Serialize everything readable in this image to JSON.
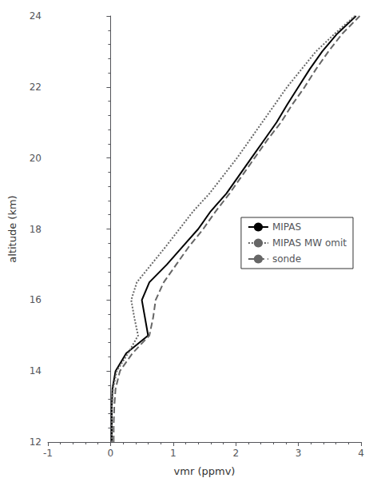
{
  "chart_data": {
    "type": "line",
    "xlabel": "vmr (ppmv)",
    "ylabel": "altitude (km)",
    "xlim": [
      -1,
      4
    ],
    "ylim": [
      12,
      24
    ],
    "xticks": [
      -1,
      0,
      1,
      2,
      3,
      4
    ],
    "yticks": [
      12,
      14,
      16,
      18,
      20,
      22,
      24
    ],
    "grid": false,
    "legend": "right",
    "series": [
      {
        "name": "MIPAS",
        "color": "#000000",
        "line_style": "solid",
        "x": [
          0.02,
          0.02,
          0.02,
          0.03,
          0.08,
          0.25,
          0.6,
          0.55,
          0.5,
          0.62,
          0.9,
          1.15,
          1.4,
          1.6,
          1.85,
          2.05,
          2.25,
          2.45,
          2.65,
          2.82,
          3.0,
          3.18,
          3.38,
          3.62,
          3.92
        ],
        "y": [
          12.0,
          12.5,
          13.0,
          13.5,
          14.0,
          14.5,
          15.0,
          15.5,
          16.0,
          16.5,
          17.0,
          17.5,
          18.0,
          18.5,
          19.0,
          19.5,
          20.0,
          20.5,
          21.0,
          21.5,
          22.0,
          22.5,
          23.0,
          23.5,
          24.0
        ]
      },
      {
        "name": "MIPAS MW omit",
        "color": "#666666",
        "line_style": "dotted",
        "x": [
          0.02,
          0.02,
          0.02,
          0.04,
          0.1,
          0.28,
          0.44,
          0.38,
          0.33,
          0.42,
          0.65,
          0.88,
          1.1,
          1.32,
          1.58,
          1.8,
          2.02,
          2.22,
          2.42,
          2.62,
          2.82,
          3.05,
          3.28,
          3.58,
          3.9
        ],
        "y": [
          12.0,
          12.5,
          13.0,
          13.5,
          14.0,
          14.5,
          15.0,
          15.5,
          16.0,
          16.5,
          17.0,
          17.5,
          18.0,
          18.5,
          19.0,
          19.5,
          20.0,
          20.5,
          21.0,
          21.5,
          22.0,
          22.5,
          23.0,
          23.5,
          24.0
        ]
      },
      {
        "name": "sonde",
        "color": "#666666",
        "line_style": "dashed",
        "x": [
          0.05,
          0.05,
          0.06,
          0.08,
          0.15,
          0.35,
          0.62,
          0.68,
          0.72,
          0.85,
          1.05,
          1.25,
          1.48,
          1.68,
          1.9,
          2.1,
          2.3,
          2.5,
          2.72,
          2.9,
          3.1,
          3.28,
          3.48,
          3.7,
          3.98
        ],
        "y": [
          12.0,
          12.5,
          13.0,
          13.5,
          14.0,
          14.5,
          15.0,
          15.5,
          16.0,
          16.5,
          17.0,
          17.5,
          18.0,
          18.5,
          19.0,
          19.5,
          20.0,
          20.5,
          21.0,
          21.5,
          22.0,
          22.5,
          23.0,
          23.5,
          24.0
        ]
      }
    ]
  }
}
